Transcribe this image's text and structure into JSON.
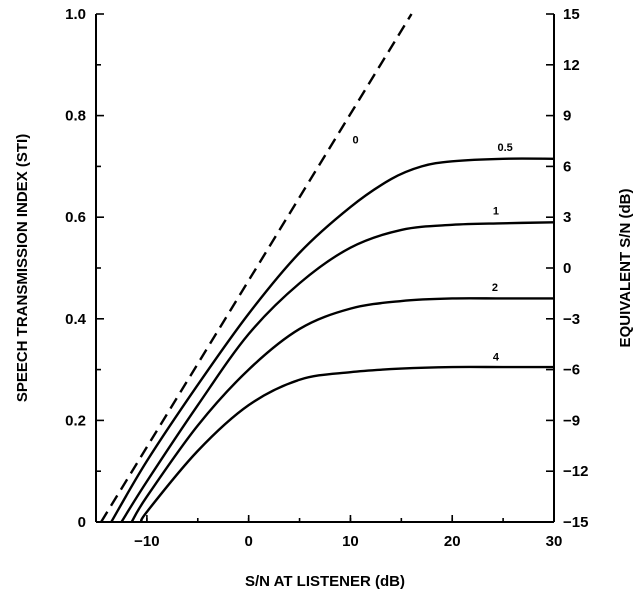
{
  "chart_data": {
    "type": "line",
    "title": "",
    "xlabel": "S/N AT LISTENER (dB)",
    "ylabel": "SPEECH TRANSMISSION INDEX (STI)",
    "y2label": "EQUIVALENT S/N (dB)",
    "xlim": [
      -15,
      30
    ],
    "ylim": [
      0,
      1.0
    ],
    "y2lim": [
      -15,
      15
    ],
    "x_ticks": [
      {
        "value": -10,
        "label": "−10"
      },
      {
        "value": 0,
        "label": "0"
      },
      {
        "value": 10,
        "label": "10"
      },
      {
        "value": 20,
        "label": "20"
      },
      {
        "value": 30,
        "label": "30"
      }
    ],
    "y_ticks": [
      {
        "value": 0,
        "label": "0"
      },
      {
        "value": 0.2,
        "label": "0.2"
      },
      {
        "value": 0.4,
        "label": "0.4"
      },
      {
        "value": 0.6,
        "label": "0.6"
      },
      {
        "value": 0.8,
        "label": "0.8"
      },
      {
        "value": 1.0,
        "label": "1.0"
      }
    ],
    "y2_ticks": [
      {
        "value": -15,
        "label": "−15"
      },
      {
        "value": -12,
        "label": "−12"
      },
      {
        "value": -9,
        "label": "−9"
      },
      {
        "value": -6,
        "label": "−6"
      },
      {
        "value": -3,
        "label": "−3"
      },
      {
        "value": 0,
        "label": "0"
      },
      {
        "value": 3,
        "label": "3"
      },
      {
        "value": 6,
        "label": "6"
      },
      {
        "value": 9,
        "label": "9"
      },
      {
        "value": 12,
        "label": "12"
      },
      {
        "value": 15,
        "label": "15"
      }
    ],
    "grid": false,
    "legend": "none",
    "series": [
      {
        "name": "0",
        "style": "dashed",
        "x": [
          -14.5,
          16
        ],
        "y": [
          0,
          1.0
        ]
      },
      {
        "name": "0.5",
        "style": "solid",
        "x": [
          -13.5,
          -10,
          -5,
          0,
          5,
          10,
          14,
          17,
          20,
          25,
          30
        ],
        "y": [
          0,
          0.12,
          0.27,
          0.41,
          0.53,
          0.62,
          0.675,
          0.7,
          0.71,
          0.715,
          0.715
        ]
      },
      {
        "name": "1",
        "style": "solid",
        "x": [
          -12.5,
          -10,
          -5,
          0,
          5,
          10,
          15,
          20,
          25,
          30
        ],
        "y": [
          0,
          0.08,
          0.23,
          0.37,
          0.47,
          0.54,
          0.575,
          0.585,
          0.588,
          0.59
        ]
      },
      {
        "name": "2",
        "style": "solid",
        "x": [
          -11.5,
          -10,
          -5,
          0,
          5,
          10,
          15,
          20,
          25,
          30
        ],
        "y": [
          0,
          0.05,
          0.19,
          0.3,
          0.38,
          0.42,
          0.435,
          0.44,
          0.44,
          0.44
        ]
      },
      {
        "name": "4",
        "style": "solid",
        "x": [
          -10.5,
          -10,
          -5,
          0,
          5,
          10,
          15,
          20,
          25,
          30
        ],
        "y": [
          0,
          0.02,
          0.14,
          0.23,
          0.28,
          0.295,
          0.302,
          0.305,
          0.305,
          0.305
        ]
      }
    ],
    "curve_labels": [
      {
        "series": "0",
        "text": "0",
        "x": 10.5,
        "y": 0.745
      },
      {
        "series": "0.5",
        "text": "0.5",
        "x": 25.2,
        "y": 0.73
      },
      {
        "series": "1",
        "text": "1",
        "x": 24.3,
        "y": 0.605
      },
      {
        "series": "2",
        "text": "2",
        "x": 24.2,
        "y": 0.455
      },
      {
        "series": "4",
        "text": "4",
        "x": 24.3,
        "y": 0.318
      }
    ]
  }
}
